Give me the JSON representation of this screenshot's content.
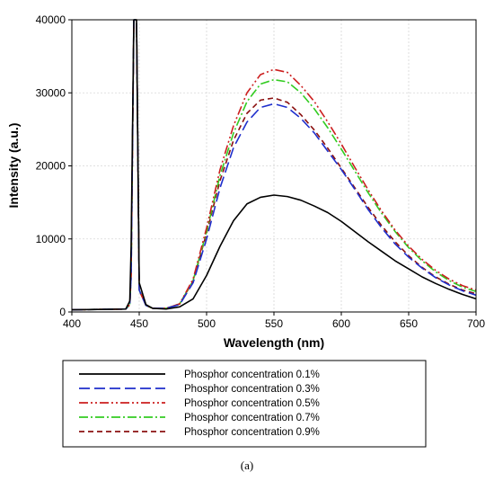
{
  "chart_data": {
    "type": "line",
    "xlabel": "Wavelength (nm)",
    "ylabel": "Intensity (a.u.)",
    "xlim": [
      400,
      700
    ],
    "ylim": [
      0,
      40000
    ],
    "x_ticks": [
      400,
      450,
      500,
      550,
      600,
      650,
      700
    ],
    "y_ticks": [
      0,
      10000,
      20000,
      30000,
      40000
    ],
    "grid": true,
    "legend_position": "below",
    "caption": "(a)",
    "series": [
      {
        "name": "Phosphor concentration 0.1%",
        "color": "#000000",
        "dash": "solid",
        "blue_peak": 40000,
        "x": [
          400,
          440,
          443,
          444,
          446,
          448,
          450,
          455,
          460,
          470,
          480,
          490,
          500,
          510,
          520,
          530,
          540,
          550,
          560,
          570,
          580,
          590,
          600,
          610,
          620,
          630,
          640,
          650,
          660,
          670,
          680,
          690,
          700
        ],
        "y": [
          300,
          400,
          1500,
          9000,
          40000,
          40000,
          4000,
          1000,
          500,
          400,
          700,
          1800,
          5000,
          9000,
          12500,
          14800,
          15700,
          16000,
          15800,
          15300,
          14500,
          13600,
          12400,
          11000,
          9600,
          8300,
          7000,
          5900,
          4800,
          3900,
          3100,
          2400,
          1800
        ]
      },
      {
        "name": "Phosphor concentration 0.3%",
        "color": "#1f2fcc",
        "dash": "long-dash",
        "blue_peak": 40000,
        "x": [
          400,
          440,
          443,
          444,
          446,
          448,
          450,
          455,
          460,
          470,
          480,
          490,
          500,
          510,
          520,
          530,
          540,
          550,
          560,
          570,
          580,
          590,
          600,
          610,
          620,
          630,
          640,
          650,
          660,
          670,
          680,
          690,
          700
        ],
        "y": [
          300,
          400,
          1000,
          5000,
          40000,
          40000,
          3000,
          900,
          500,
          500,
          1000,
          4000,
          10000,
          17000,
          22500,
          26000,
          28000,
          28500,
          28000,
          26500,
          24500,
          22000,
          19500,
          16800,
          14000,
          11500,
          9300,
          7500,
          6000,
          4700,
          3700,
          2900,
          2300
        ]
      },
      {
        "name": "Phosphor concentration 0.5%",
        "color": "#cc1f1f",
        "dash": "dash-dot-dot",
        "blue_peak": 40000,
        "x": [
          400,
          440,
          443,
          444,
          446,
          448,
          450,
          455,
          460,
          470,
          480,
          490,
          500,
          510,
          520,
          530,
          540,
          550,
          560,
          570,
          580,
          590,
          600,
          610,
          620,
          630,
          640,
          650,
          660,
          670,
          680,
          690,
          700
        ],
        "y": [
          300,
          400,
          1000,
          5000,
          40000,
          40000,
          3000,
          900,
          500,
          500,
          1100,
          4500,
          11500,
          19500,
          25500,
          30000,
          32500,
          33200,
          32800,
          31000,
          28800,
          26000,
          23000,
          19800,
          16700,
          13800,
          11200,
          9000,
          7200,
          5700,
          4500,
          3600,
          3000
        ]
      },
      {
        "name": "Phosphor concentration 0.7%",
        "color": "#33cc22",
        "dash": "dash-dot",
        "blue_peak": 40000,
        "x": [
          400,
          440,
          443,
          444,
          446,
          448,
          450,
          455,
          460,
          470,
          480,
          490,
          500,
          510,
          520,
          530,
          540,
          550,
          560,
          570,
          580,
          590,
          600,
          610,
          620,
          630,
          640,
          650,
          660,
          670,
          680,
          690,
          700
        ],
        "y": [
          300,
          400,
          1000,
          5000,
          40000,
          40000,
          3000,
          900,
          500,
          500,
          1100,
          4300,
          11000,
          18700,
          24500,
          28800,
          31200,
          31800,
          31500,
          30000,
          27800,
          25200,
          22300,
          19300,
          16300,
          13500,
          11000,
          8800,
          7000,
          5500,
          4300,
          3400,
          2800
        ]
      },
      {
        "name": "Phosphor concentration 0.9%",
        "color": "#8b1010",
        "dash": "short-dash",
        "blue_peak": 40000,
        "x": [
          400,
          440,
          443,
          444,
          446,
          448,
          450,
          455,
          460,
          470,
          480,
          490,
          500,
          510,
          520,
          530,
          540,
          550,
          560,
          570,
          580,
          590,
          600,
          610,
          620,
          630,
          640,
          650,
          660,
          670,
          680,
          690,
          700
        ],
        "y": [
          300,
          400,
          1000,
          5000,
          40000,
          40000,
          3000,
          900,
          500,
          500,
          1100,
          4200,
          10800,
          18000,
          23500,
          27200,
          29000,
          29300,
          28700,
          27000,
          24900,
          22400,
          19700,
          17000,
          14300,
          11800,
          9600,
          7700,
          6100,
          4800,
          3800,
          3000,
          2500
        ]
      }
    ]
  }
}
